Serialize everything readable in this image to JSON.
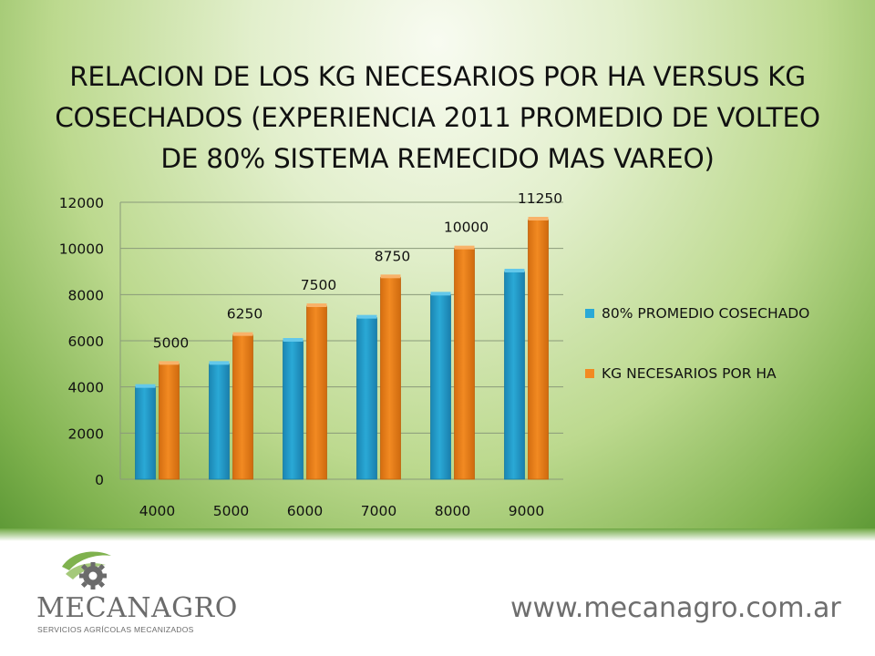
{
  "title": "RELACION DE LOS KG NECESARIOS POR HA VERSUS KG COSECHADOS  (EXPERIENCIA 2011 PROMEDIO DE VOLTEO DE 80% SISTEMA REMECIDO MAS VAREO)",
  "colors": {
    "series1": "#2aa9d6",
    "series2": "#f28a22",
    "grid": "#8a9a7a",
    "footer_green": "#6fa843"
  },
  "chart_data": {
    "type": "bar",
    "categories": [
      "4000",
      "5000",
      "6000",
      "7000",
      "8000",
      "9000"
    ],
    "series": [
      {
        "name": "80% PROMEDIO COSECHADO",
        "values": [
          4000,
          5000,
          6000,
          7000,
          8000,
          9000
        ]
      },
      {
        "name": "KG NECESARIOS POR HA",
        "values": [
          5000,
          6250,
          7500,
          8750,
          10000,
          11250
        ]
      }
    ],
    "data_labels_series": 1,
    "ylim": [
      0,
      12000
    ],
    "yticks": [
      0,
      2000,
      4000,
      6000,
      8000,
      10000,
      12000
    ],
    "grid": true,
    "legend": "right"
  },
  "footer": {
    "logo_icon": "gear-leaf-icon",
    "logo_name": "MECANAGRO",
    "logo_tagline": "SERVICIOS AGRÍCOLAS MECANIZADOS",
    "url": "www.mecanagro.com.ar"
  }
}
